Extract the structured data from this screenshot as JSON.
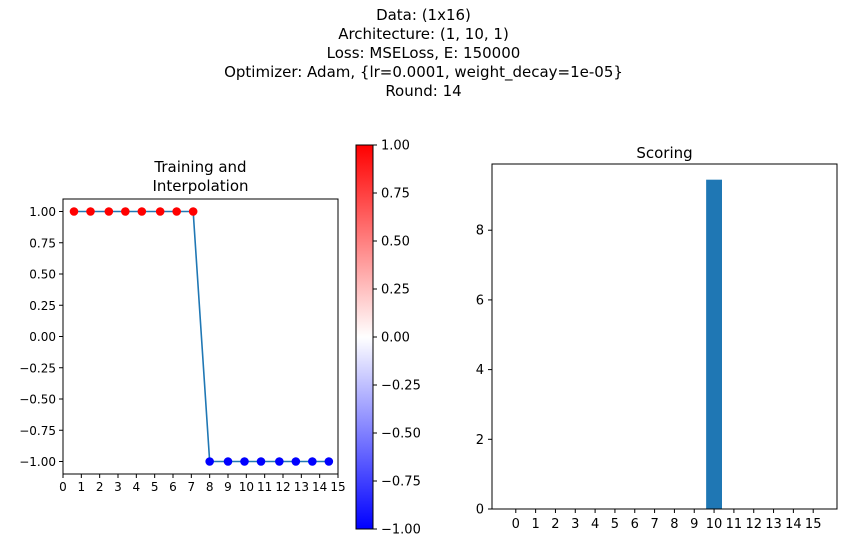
{
  "suptitle": [
    "Data: (1x16)",
    "Architecture: (1, 10, 1)",
    "Loss: MSELoss, E: 150000",
    "Optimizer: Adam, {lr=0.0001, weight_decay=1e-05}",
    "Round: 14"
  ],
  "chart_data": [
    {
      "type": "scatter",
      "title": "Training and\n Interpolation",
      "xlim": [
        0,
        15
      ],
      "ylim": [
        -1.1,
        1.1
      ],
      "xticks": [
        "0",
        "1",
        "2",
        "3",
        "4",
        "5",
        "6",
        "7",
        "8",
        "9",
        "10",
        "11",
        "12",
        "13",
        "14",
        "15"
      ],
      "yticks": [
        "1.00",
        "0.75",
        "0.50",
        "0.25",
        "0.00",
        "−0.25",
        "−0.50",
        "−0.75",
        "−1.00"
      ],
      "ytick_values": [
        1.0,
        0.75,
        0.5,
        0.25,
        0.0,
        -0.25,
        -0.5,
        -0.75,
        -1.0
      ],
      "points": {
        "x": [
          0.6,
          1.5,
          2.5,
          3.4,
          4.3,
          5.3,
          6.2,
          7.1,
          8.0,
          9.0,
          9.9,
          10.8,
          11.8,
          12.7,
          13.6,
          14.5
        ],
        "y": [
          1,
          1,
          1,
          1,
          1,
          1,
          1,
          1,
          -1,
          -1,
          -1,
          -1,
          -1,
          -1,
          -1,
          -1
        ]
      },
      "interpolation_line": {
        "x": [
          0.6,
          7.1,
          8.0,
          14.5
        ],
        "y": [
          1,
          1,
          -1,
          -1
        ],
        "color": "#1f77b4"
      },
      "colormap": "bwr",
      "colorbar": {
        "ticks": [
          "1.00",
          "0.75",
          "0.50",
          "0.25",
          "0.00",
          "−0.25",
          "−0.50",
          "−0.75",
          "−1.00"
        ],
        "tick_values": [
          1.0,
          0.75,
          0.5,
          0.25,
          0.0,
          -0.25,
          -0.5,
          -0.75,
          -1.0
        ],
        "range": [
          -1.0,
          1.0
        ]
      },
      "colors": {
        "positive": "#ff0000",
        "negative": "#0000ff"
      }
    },
    {
      "type": "bar",
      "title": "Scoring",
      "categories": [
        "0",
        "1",
        "2",
        "3",
        "4",
        "5",
        "6",
        "7",
        "8",
        "9",
        "10",
        "11",
        "12",
        "13",
        "14",
        "15"
      ],
      "values": [
        0,
        0,
        0,
        0,
        0,
        0,
        0,
        0,
        0,
        0,
        9.45,
        0,
        0,
        0,
        0,
        0
      ],
      "ylim": [
        0,
        9.9
      ],
      "yticks": [
        "0",
        "2",
        "4",
        "6",
        "8"
      ],
      "ytick_values": [
        0,
        2,
        4,
        6,
        8
      ],
      "bar_color": "#1f77b4"
    }
  ]
}
